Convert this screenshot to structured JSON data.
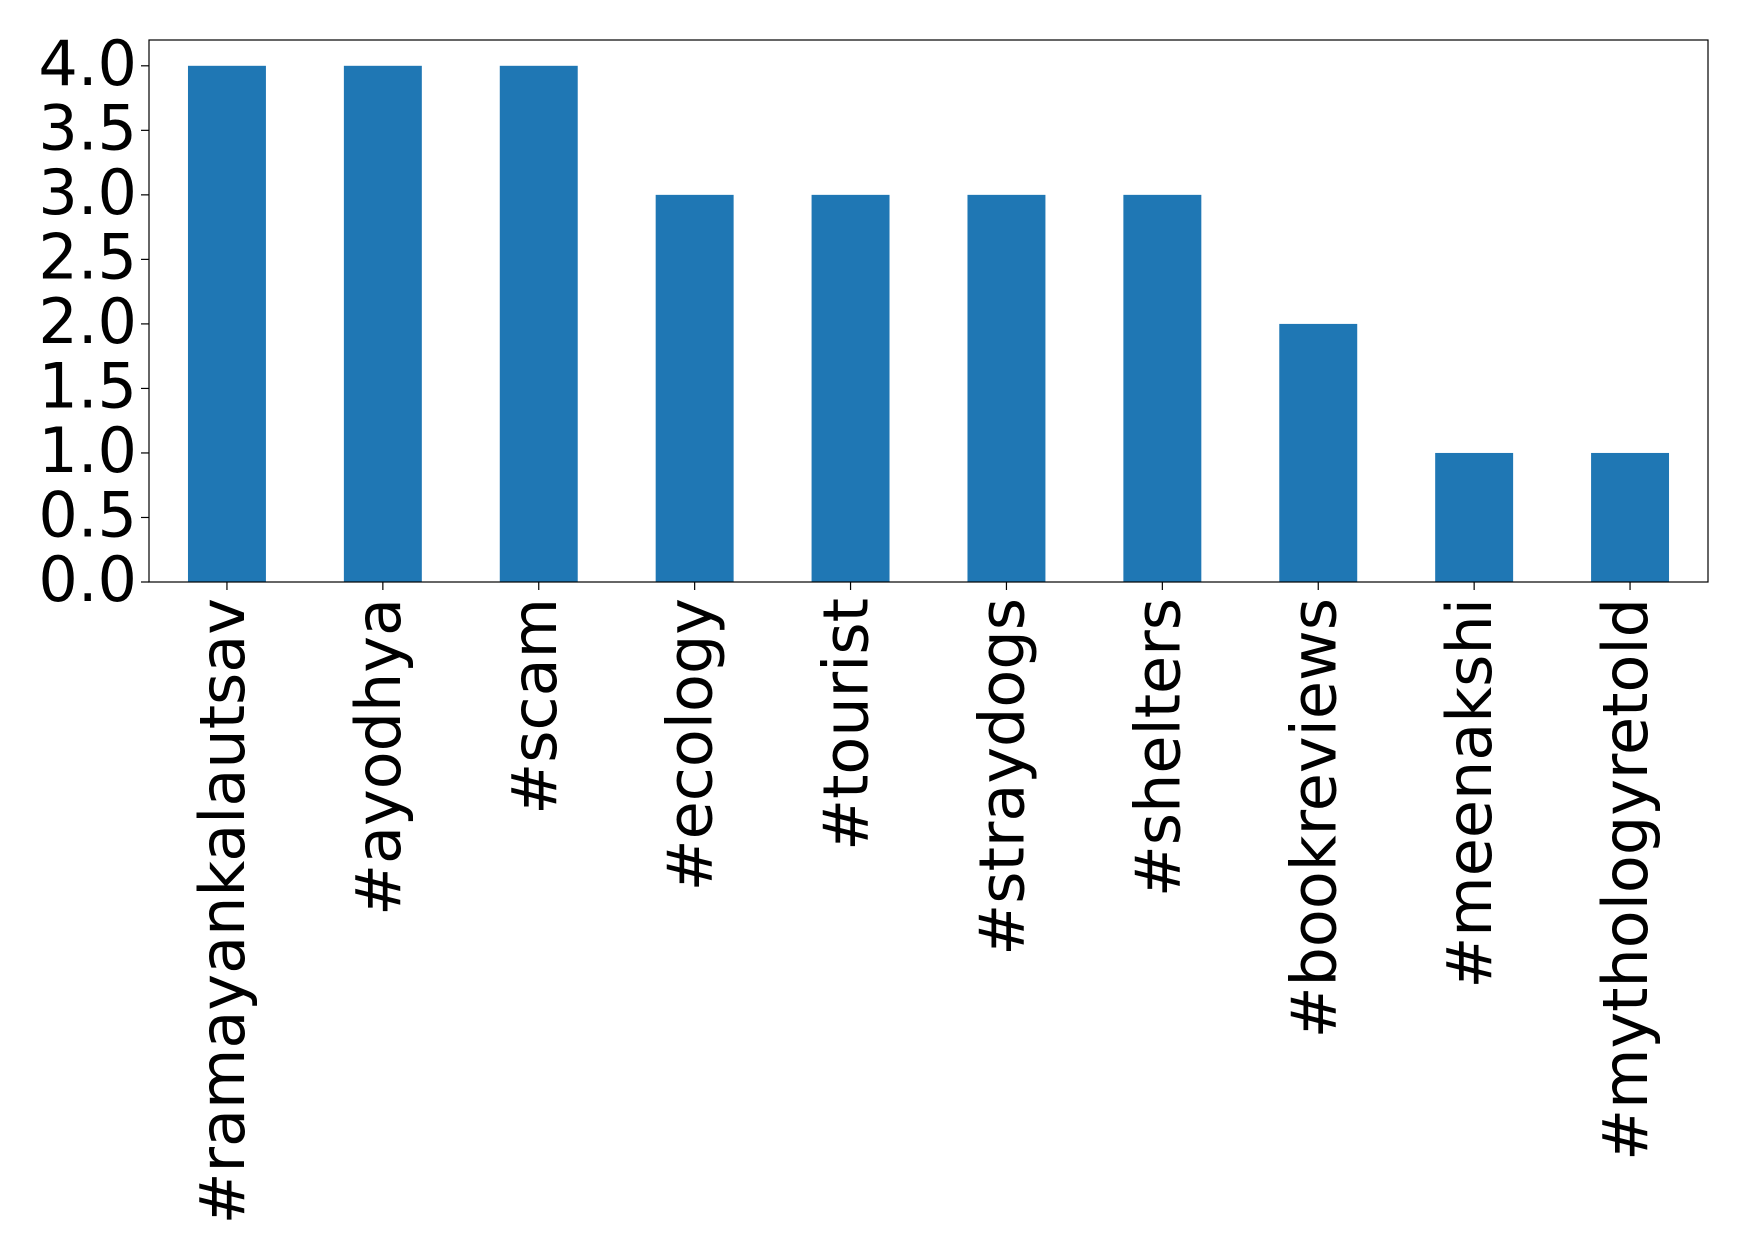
{
  "chart_data": {
    "type": "bar",
    "categories": [
      "#ramayankalautsav",
      "#ayodhya",
      "#scam",
      "#ecology",
      "#tourist",
      "#straydogs",
      "#shelters",
      "#bookreviews",
      "#meenakshi",
      "#mythologyretold"
    ],
    "values": [
      4,
      4,
      4,
      3,
      3,
      3,
      3,
      2,
      1,
      1
    ],
    "color": "#1f77b4",
    "ylim": [
      0,
      4.2
    ],
    "yticks": [
      {
        "value": 0,
        "label": "0.0"
      },
      0.5,
      {
        "value": 1,
        "label": "1.0"
      },
      1.5,
      {
        "value": 2,
        "label": "2.0"
      },
      2.5,
      {
        "value": 3,
        "label": "3.0"
      },
      3.5,
      {
        "value": 4,
        "label": "4.0"
      }
    ],
    "grid": false
  }
}
